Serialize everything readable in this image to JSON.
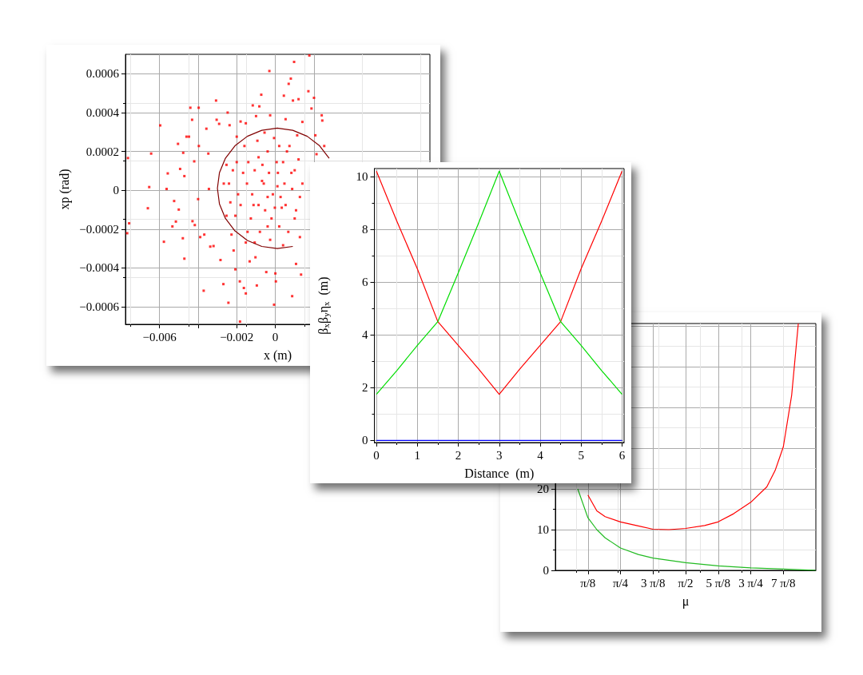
{
  "chart_data": [
    {
      "type": "scatter",
      "xlabel": "x (m)",
      "ylabel": "xp (rad)",
      "grid": true,
      "xlim": [
        -0.00776,
        0.008
      ],
      "xticks": [
        {
          "value": -0.006,
          "label": "−0.006"
        },
        {
          "value": -0.004,
          "label": null
        },
        {
          "value": -0.002,
          "label": "−0.002"
        },
        0,
        {
          "value": 0.002,
          "label": null
        }
      ],
      "ylim": [
        -0.00069,
        0.0007
      ],
      "yticks": [
        {
          "value": -0.0006,
          "label": "−0.0006"
        },
        {
          "value": -0.0004,
          "label": "−0.0004"
        },
        {
          "value": -0.0002,
          "label": "−0.0002"
        },
        0,
        {
          "value": 0.0002,
          "label": "0.0002"
        },
        {
          "value": 0.0004,
          "label": "0.0004"
        },
        {
          "value": 0.0006,
          "label": "0.0006"
        }
      ],
      "series": [
        {
          "marker": "square",
          "color": "#ff0000",
          "x": [
            -0.00763,
            -0.00767,
            -0.00757,
            -0.00643,
            -0.00653,
            -0.0066,
            -0.00596,
            -0.00557,
            -0.00563,
            -0.00577,
            -0.00524,
            -0.00533,
            -0.00515,
            -0.005,
            -0.00504,
            -0.00493,
            -0.00477,
            -0.00471,
            -0.00479,
            -0.00471,
            -0.0046,
            -0.00447,
            -0.0044,
            -0.00431,
            -0.00429,
            -0.0042,
            -0.00417,
            -0.00397,
            -0.00396,
            -0.004,
            -0.00389,
            -0.00371,
            -0.00368,
            -0.00357,
            -0.00347,
            -0.00344,
            -0.00337,
            -0.0032,
            -0.00307,
            -0.00304,
            -0.00291,
            -0.00284,
            -0.00269,
            -0.00267,
            -0.00253,
            -0.00247,
            -0.00243,
            -0.00237,
            -0.00227,
            -0.00216,
            -0.00207,
            -0.002,
            -0.00184,
            -0.0018,
            -0.00183,
            -0.00163,
            -0.00153,
            -0.00153,
            -0.00144,
            -0.00133,
            -0.00117,
            -0.00113,
            -0.00103,
            -0.001,
            -0.00096,
            -0.00087,
            -0.00083,
            -0.00073,
            -0.00069,
            -0.00056,
            -0.00047,
            -0.0004,
            -0.00031,
            -0.00027,
            -0.0002,
            -6.7e-05,
            0,
            2.7e-05,
            6.7e-05,
            0.000107,
            0.0002,
            0.00033,
            0.0004,
            0.00044,
            0.00053,
            0.0006,
            0.00069,
            0.0008,
            0.00083,
            0.00087,
            0.00091,
            0.00097,
            0.001,
            0.00107,
            0.00113,
            0.0012,
            0.00127,
            0.00133,
            0.0014,
            0.00171,
            0.00176,
            0.00187,
            0.002,
            0.00207,
            0.00213,
            0.0024,
            0.00243,
            0.00253,
            -0.0024,
            -0.0022,
            -0.002,
            -0.00193,
            -0.0018,
            -0.00167,
            -0.0016,
            -0.00147,
            -0.0014,
            -0.00127,
            -0.0012,
            -0.00107,
            -0.00093,
            -0.00087,
            -0.0008,
            -0.00067,
            -0.0006,
            -0.00053,
            -0.0004,
            -0.00033,
            -0.00027,
            -0.00013,
            -6.7e-05,
            -2.7e-05,
            0.00013,
            0.0002,
            0.00027,
            0.0004,
            0.00047,
            0.00053,
            0.00067,
            0.00073,
            0.00087,
            0.001,
            0.00107,
            0.0012,
            0.00127,
            0.0014,
            -0.00153,
            -0.00107,
            -0.0004,
            -0.00207,
            -0.00233,
            -0.00253
          ],
          "values": [
            0.000166,
            -0.000221,
            -0.00017,
            0.000189,
            1.66e-05,
            -9.24e-05,
            0.000334,
            8.69e-05,
            6.9e-06,
            -0.000265,
            -5.52e-05,
            -0.000186,
            -0.000161,
            -9.93e-05,
            0.000239,
            0.00011,
            0.000193,
            7.31e-05,
            -0.000247,
            -0.000352,
            0.000276,
            0.000276,
            0.000425,
            0.000363,
            -0.000159,
            0.000149,
            -0.000179,
            0.000425,
            0.000228,
            -4.55e-05,
            -0.000241,
            -0.000517,
            -0.000228,
            0.000317,
            0.000189,
            6.9e-06,
            -0.00029,
            -0.000287,
            0.000462,
            0.000363,
            0.000342,
            -0.000359,
            -0.000483,
            3.45e-05,
            -0.000131,
            0.0004,
            -0.000579,
            0.000335,
            -0.000228,
            -0.00031,
            -0.000407,
            0.000276,
            -0.000469,
            0.000354,
            -0.000676,
            -0.000503,
            -0.000531,
            0.000345,
            -0.000214,
            -0.000366,
            0.000437,
            -7.59e-05,
            -0.000345,
            0.000382,
            -0.00049,
            0.00017,
            0.000432,
            0.000492,
            4.83e-05,
            0.000297,
            -0.000421,
            -3.45e-05,
            0.000614,
            0.000386,
            -0.000145,
            -0.000589,
            -0.000428,
            -0.000469,
            0.000145,
            2.07e-05,
            0.000228,
            -8.97e-05,
            -0.000283,
            0.000487,
            0.000366,
            0.0002,
            0.000548,
            0.000575,
            8.97e-05,
            -0.000545,
            0.000462,
            0.000661,
            -0.000145,
            -0.000379,
            0.000283,
            0.000469,
            -3.45e-05,
            -0.000434,
            0.000352,
            0.00051,
            0.000694,
            0.000421,
            0.000476,
            0.000283,
            0.000186,
            0.000386,
            0.000359,
            0.000228,
            3.45e-05,
            0.000103,
            0.000145,
            -2.07e-05,
            -7.59e-05,
            8.97e-05,
            0.000228,
            3.45e-05,
            0.000145,
            -0.000145,
            -2.07e-05,
            0.000103,
            0.000255,
            -7.59e-05,
            -0.000214,
            0.000131,
            3.45e-05,
            -0.000103,
            0.0002,
            8.97e-05,
            -0.000255,
            -2.07e-05,
            0.000269,
            -8.97e-05,
            8.97e-05,
            -0.000186,
            -3.45e-05,
            0.000145,
            3.45e-05,
            -7.59e-05,
            -0.000214,
            0.000228,
            6.9e-06,
            0.000103,
            -0.000103,
            0.000159,
            -0.000241,
            3.45e-05,
            -0.000269,
            -0.000269,
            -0.000186,
            -0.000131,
            -6.21e-05,
            0.000131
          ]
        },
        {
          "type": "line",
          "marker": "none",
          "color": "#800000",
          "x": [
            0.002785,
            0.002292,
            0.00165,
            0.000903,
            0.0001,
            -0.000703,
            -0.00145,
            -0.002092,
            -0.002585,
            -0.002895,
            -0.003,
            -0.002895,
            -0.002585,
            -0.002092,
            -0.00145,
            -0.000703,
            0.0001,
            0.000903
          ],
          "values": [
            0.000165,
            0.000229,
            0.000278,
            0.000309,
            0.00032,
            0.000309,
            0.000278,
            0.000229,
            0.000165,
            9e-05,
            1e-05,
            -7e-05,
            -0.000145,
            -0.000209,
            -0.000258,
            -0.000289,
            -0.0003,
            -0.000289
          ]
        }
      ]
    },
    {
      "type": "line",
      "xlabel": "Distance  (m)",
      "ylabel": "β$_{x}$β$_{y}$η$_{x}$  (m)",
      "marker": "none",
      "grid": true,
      "xlim": [
        -0.05,
        6.05
      ],
      "xticks": [
        0,
        1,
        2,
        3,
        4,
        5,
        6
      ],
      "ylim": [
        -0.08,
        10.3
      ],
      "yticks": [
        0,
        2,
        4,
        6,
        8,
        10
      ],
      "series": [
        {
          "color": "#ff0000",
          "x": [
            0,
            0.5,
            1,
            1.5,
            2,
            2.5,
            3,
            3.5,
            4,
            4.5,
            5,
            5.5,
            6
          ],
          "values": [
            10.2,
            8.3,
            6.5,
            4.5,
            3.6,
            2.7,
            1.75,
            2.7,
            3.6,
            4.5,
            6.5,
            8.3,
            10.2
          ]
        },
        {
          "color": "#00dd00",
          "x": [
            0,
            0.5,
            1,
            1.5,
            2,
            2.5,
            3,
            3.5,
            4,
            4.5,
            5,
            5.5,
            6
          ],
          "values": [
            1.75,
            2.65,
            3.6,
            4.5,
            6.35,
            8.25,
            10.2,
            8.25,
            6.35,
            4.5,
            3.6,
            2.65,
            1.75
          ]
        },
        {
          "color": "#0000ff",
          "x": [
            0,
            6
          ],
          "values": [
            0,
            0
          ]
        }
      ]
    },
    {
      "type": "line",
      "xlabel": "μ",
      "marker": "none",
      "grid": true,
      "xlim": [
        0,
        3.1416
      ],
      "xticks": [
        {
          "value": 0.3927,
          "label": "π/8"
        },
        {
          "value": 0.7854,
          "label": "π/4"
        },
        {
          "value": 1.1781,
          "label": "3 π/8"
        },
        {
          "value": 1.5708,
          "label": "π/2"
        },
        {
          "value": 1.9635,
          "label": "5 π/8"
        },
        {
          "value": 2.3562,
          "label": "3 π/4"
        },
        {
          "value": 2.7489,
          "label": "7 π/8"
        }
      ],
      "ylim": [
        0,
        60.6
      ],
      "yticks": [
        0,
        10,
        20,
        {
          "value": 30,
          "label": null
        },
        {
          "value": 40,
          "label": null
        },
        {
          "value": 50,
          "label": null
        },
        {
          "value": 60,
          "label": null
        }
      ],
      "series": [
        {
          "color": "#ff0000",
          "x": [
            0.3927,
            0.5,
            0.6,
            0.785,
            1.0,
            1.178,
            1.37,
            1.571,
            1.8,
            1.963,
            2.15,
            2.356,
            2.55,
            2.65,
            2.749,
            2.85,
            2.93
          ],
          "values": [
            18.5,
            14.6,
            13.2,
            11.9,
            10.9,
            10.1,
            10,
            10.3,
            11,
            11.9,
            13.9,
            16.7,
            20.5,
            24.5,
            30.3,
            43,
            60.6
          ]
        },
        {
          "color": "#22bb22",
          "x": [
            0.27,
            0.3927,
            0.5,
            0.6,
            0.785,
            1.0,
            1.178,
            1.571,
            1.963,
            2.356,
            2.749,
            3.1416
          ],
          "values": [
            20,
            12.9,
            10,
            8,
            5.5,
            3.9,
            3.0,
            1.9,
            1.1,
            0.6,
            0.3,
            0
          ]
        }
      ]
    }
  ]
}
